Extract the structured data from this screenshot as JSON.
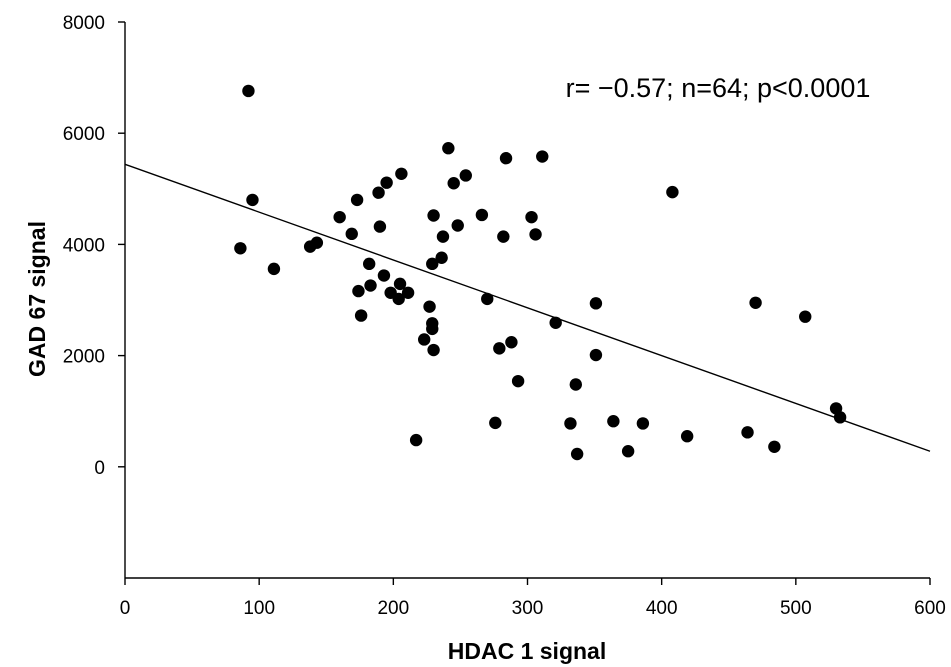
{
  "chart_data": {
    "type": "scatter",
    "title": "",
    "xlabel": "HDAC 1 signal",
    "ylabel": "GAD 67 signal",
    "xlim": [
      0,
      600
    ],
    "ylim": [
      -2000,
      8000
    ],
    "xticks": [
      0,
      100,
      200,
      300,
      400,
      500,
      600
    ],
    "yticks": [
      0,
      2000,
      4000,
      6000,
      8000
    ],
    "grid": false,
    "legend": "none",
    "annotation": "r= −0.57; n=64; p<0.0001",
    "series": [
      {
        "color": "#000000",
        "points": [
          [
            92,
            6760
          ],
          [
            95,
            4800
          ],
          [
            86,
            3930
          ],
          [
            111,
            3560
          ],
          [
            138,
            3960
          ],
          [
            143,
            4030
          ],
          [
            160,
            4490
          ],
          [
            169,
            4190
          ],
          [
            173,
            4800
          ],
          [
            174,
            3160
          ],
          [
            176,
            2720
          ],
          [
            182,
            3650
          ],
          [
            183,
            3260
          ],
          [
            189,
            4930
          ],
          [
            190,
            4320
          ],
          [
            193,
            3440
          ],
          [
            195,
            5110
          ],
          [
            198,
            3130
          ],
          [
            204,
            3020
          ],
          [
            205,
            3290
          ],
          [
            206,
            5270
          ],
          [
            211,
            3130
          ],
          [
            217,
            480
          ],
          [
            223,
            2290
          ],
          [
            227,
            2880
          ],
          [
            229,
            2580
          ],
          [
            229,
            2480
          ],
          [
            229,
            3650
          ],
          [
            230,
            4520
          ],
          [
            230,
            2100
          ],
          [
            236,
            3760
          ],
          [
            237,
            4140
          ],
          [
            241,
            5730
          ],
          [
            245,
            5100
          ],
          [
            248,
            4340
          ],
          [
            254,
            5240
          ],
          [
            266,
            4530
          ],
          [
            270,
            3020
          ],
          [
            276,
            790
          ],
          [
            279,
            2130
          ],
          [
            282,
            4140
          ],
          [
            284,
            5550
          ],
          [
            288,
            2240
          ],
          [
            293,
            1540
          ],
          [
            303,
            4490
          ],
          [
            306,
            4180
          ],
          [
            311,
            5580
          ],
          [
            321,
            2590
          ],
          [
            332,
            780
          ],
          [
            336,
            1480
          ],
          [
            337,
            230
          ],
          [
            351,
            2940
          ],
          [
            351,
            2010
          ],
          [
            364,
            820
          ],
          [
            375,
            280
          ],
          [
            386,
            780
          ],
          [
            408,
            4940
          ],
          [
            419,
            550
          ],
          [
            464,
            620
          ],
          [
            470,
            2950
          ],
          [
            484,
            360
          ],
          [
            507,
            2700
          ],
          [
            530,
            1050
          ],
          [
            533,
            890
          ]
        ]
      }
    ],
    "fit_line": {
      "x": [
        0,
        600
      ],
      "y": [
        5440,
        280
      ]
    }
  }
}
